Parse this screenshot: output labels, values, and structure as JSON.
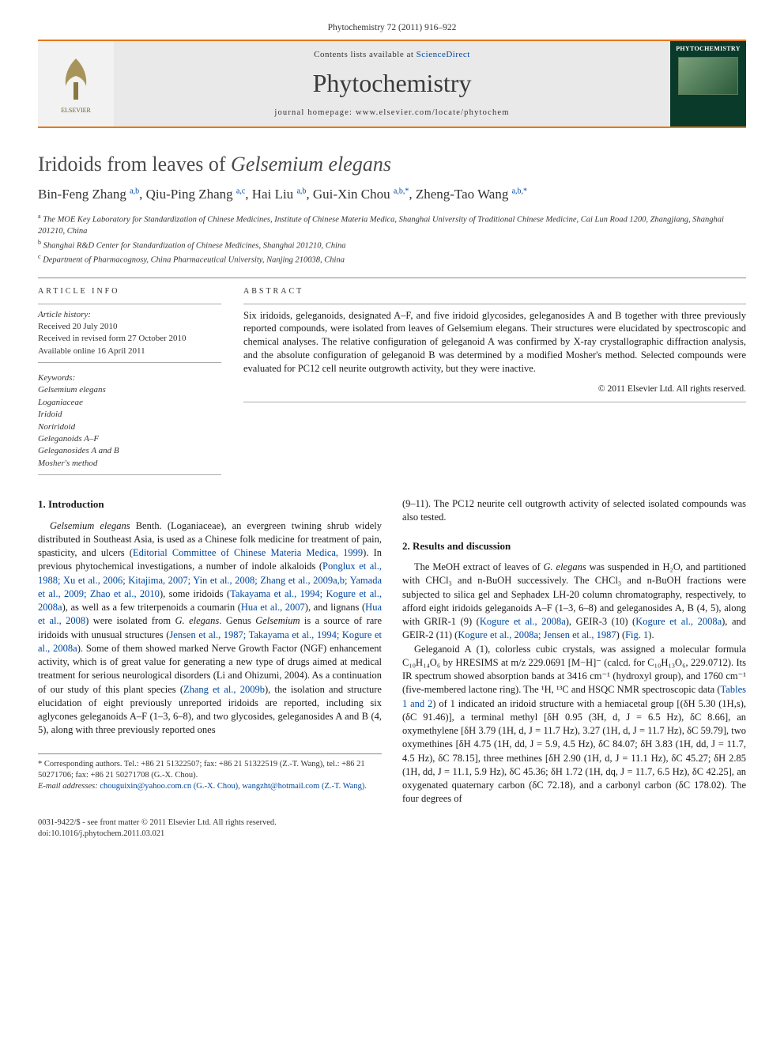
{
  "top_citation": "Phytochemistry 72 (2011) 916–922",
  "banner": {
    "contents_line_prefix": "Contents lists available at ",
    "contents_link": "ScienceDirect",
    "journal": "Phytochemistry",
    "homepage_prefix": "journal homepage: ",
    "homepage": "www.elsevier.com/locate/phytochem",
    "cover_label": "PHYTOCHEMISTRY",
    "publisher_logo_label": "ELSEVIER"
  },
  "title_plain": "Iridoids from leaves of ",
  "title_italic": "Gelsemium elegans",
  "authors_html": "Bin-Feng Zhang <sup>a,b</sup>, Qiu-Ping Zhang <sup>a,c</sup>, Hai Liu <sup>a,b</sup>, Gui-Xin Chou <sup>a,b,*</sup>, Zheng-Tao Wang <sup>a,b,*</sup>",
  "affiliations": [
    "a The MOE Key Laboratory for Standardization of Chinese Medicines, Institute of Chinese Materia Medica, Shanghai University of Traditional Chinese Medicine, Cai Lun Road 1200, Zhangjiang, Shanghai 201210, China",
    "b Shanghai R&D Center for Standardization of Chinese Medicines, Shanghai 201210, China",
    "c Department of Pharmacognosy, China Pharmaceutical University, Nanjing 210038, China"
  ],
  "article_info": {
    "heading": "ARTICLE INFO",
    "history_head": "Article history:",
    "history": [
      "Received 20 July 2010",
      "Received in revised form 27 October 2010",
      "Available online 16 April 2011"
    ],
    "keywords_head": "Keywords:",
    "keywords": [
      "Gelsemium elegans",
      "Loganiaceae",
      "Iridoid",
      "Noriridoid",
      "Geleganoids A–F",
      "Geleganosides A and B",
      "Mosher's method"
    ]
  },
  "abstract": {
    "heading": "ABSTRACT",
    "body": "Six iridoids, geleganoids, designated A–F, and five iridoid glycosides, geleganosides A and B together with three previously reported compounds, were isolated from leaves of Gelsemium elegans. Their structures were elucidated by spectroscopic and chemical analyses. The relative configuration of geleganoid A was confirmed by X-ray crystallographic diffraction analysis, and the absolute configuration of geleganoid B was determined by a modified Mosher's method. Selected compounds were evaluated for PC12 cell neurite outgrowth activity, but they were inactive.",
    "copyright": "© 2011 Elsevier Ltd. All rights reserved."
  },
  "sections": {
    "intro_head": "1. Introduction",
    "intro_body": "Gelsemium elegans Benth. (Loganiaceae), an evergreen twining shrub widely distributed in Southeast Asia, is used as a Chinese folk medicine for treatment of pain, spasticity, and ulcers (Editorial Committee of Chinese Materia Medica, 1999). In previous phytochemical investigations, a number of indole alkaloids (Ponglux et al., 1988; Xu et al., 2006; Kitajima, 2007; Yin et al., 2008; Zhang et al., 2009a,b; Yamada et al., 2009; Zhao et al., 2010), some iridoids (Takayama et al., 1994; Kogure et al., 2008a), as well as a few triterpenoids a coumarin (Hua et al., 2007), and lignans (Hua et al., 2008) were isolated from G. elegans. Genus Gelsemium is a source of rare iridoids with unusual structures (Jensen et al., 1987; Takayama et al., 1994; Kogure et al., 2008a). Some of them showed marked Nerve Growth Factor (NGF) enhancement activity, which is of great value for generating a new type of drugs aimed at medical treatment for serious neurological disorders (Li and Ohizumi, 2004). As a continuation of our study of this plant species (Zhang et al., 2009b), the isolation and structure elucidation of eight previously unreported iridoids are reported, including six aglycones geleganoids A–F (1–3, 6–8), and two glycosides, geleganosides A and B (4, 5), along with three previously reported ones",
    "col2_top": "(9–11). The PC12 neurite cell outgrowth activity of selected isolated compounds was also tested.",
    "results_head": "2. Results and discussion",
    "results_body": "The MeOH extract of leaves of G. elegans was suspended in H₂O, and partitioned with CHCl₃ and n-BuOH successively. The CHCl₃ and n-BuOH fractions were subjected to silica gel and Sephadex LH-20 column chromatography, respectively, to afford eight iridoids geleganoids A–F (1–3, 6–8) and geleganosides A, B (4, 5), along with GRIR-1 (9) (Kogure et al., 2008a), GEIR-3 (10) (Kogure et al., 2008a), and GEIR-2 (11) (Kogure et al., 2008a; Jensen et al., 1987) (Fig. 1).",
    "results_body2": "Geleganoid A (1), colorless cubic crystals, was assigned a molecular formula C₁₀H₁₄O₆ by HRESIMS at m/z 229.0691 [M−H]⁻ (calcd. for C₁₀H₁₃O₆, 229.0712). Its IR spectrum showed absorption bands at 3416 cm⁻¹ (hydroxyl group), and 1760 cm⁻¹ (five-membered lactone ring). The ¹H, ¹³C and HSQC NMR spectroscopic data (Tables 1 and 2) of 1 indicated an iridoid structure with a hemiacetal group [(δH 5.30 (1H,s), (δC 91.46)], a terminal methyl [δH 0.95 (3H, d, J = 6.5 Hz), δC 8.66], an oxymethylene [δH 3.79 (1H, d, J = 11.7 Hz), 3.27 (1H, d, J = 11.7 Hz), δC 59.79], two oxymethines [δH 4.75 (1H, dd, J = 5.9, 4.5 Hz), δC 84.07; δH 3.83 (1H, dd, J = 11.7, 4.5 Hz), δC 78.15], three methines [δH 2.90 (1H, d, J = 11.1 Hz), δC 45.27; δH 2.85 (1H, dd, J = 11.1, 5.9 Hz), δC 45.36; δH 1.72 (1H, dq, J = 11.7, 6.5 Hz), δC 42.25], an oxygenated quaternary carbon (δC 72.18), and a carbonyl carbon (δC 178.02). The four degrees of"
  },
  "footnotes": {
    "corresponding": "* Corresponding authors. Tel.: +86 21 51322507; fax: +86 21 51322519 (Z.-T. Wang), tel.: +86 21 50271706; fax: +86 21 50271708 (G.-X. Chou).",
    "emails_label": "E-mail addresses: ",
    "emails": "chouguixin@yahoo.com.cn (G.-X. Chou), wangzht@hotmail.com (Z.-T. Wang)."
  },
  "footer": {
    "left": "0031-9422/$ - see front matter © 2011 Elsevier Ltd. All rights reserved.",
    "doi": "doi:10.1016/j.phytochem.2011.03.021"
  },
  "colors": {
    "accent": "#e67817",
    "link": "#0048a0",
    "cover_bg": "#0a3a2a",
    "text": "#1a1a1a",
    "muted": "#333333",
    "rule": "#888888",
    "banner_bg": "#e9e9e9"
  },
  "typography": {
    "body_pt": 12.5,
    "title_pt": 26,
    "journal_pt": 32,
    "authors_pt": 17,
    "small_pt": 10.5
  }
}
